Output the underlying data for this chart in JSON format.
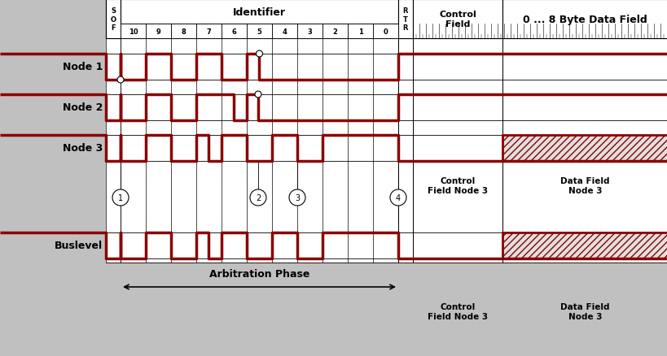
{
  "fig_bg": "#c0c0c0",
  "white": "#ffffff",
  "dark_red": "#8B0000",
  "black": "#000000",
  "hatch_color": "#c8c8c8",
  "node_labels": [
    "Node 1",
    "Node 2",
    "Node 3"
  ],
  "bus_label": "Buslevel",
  "id_bits": [
    "10",
    "9",
    "8",
    "7",
    "6",
    "5",
    "4",
    "3",
    "2",
    "1",
    "0"
  ],
  "circled_numbers": [
    "1",
    "2",
    "3",
    "4"
  ],
  "arb_phase_label": "Arbitration Phase",
  "ctrl_label": "Control\nField Node 3",
  "data_label": "Data Field\nNode 3"
}
